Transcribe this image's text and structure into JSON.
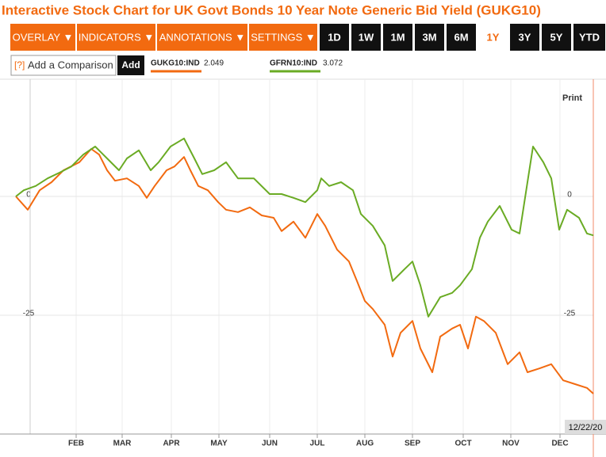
{
  "chart_data": {
    "type": "line",
    "title": "Interactive Stock Chart for UK Govt Bonds 10 Year Note Generic Bid Yield (GUKG10)",
    "xlim": [
      0,
      364
    ],
    "xticks": [
      {
        "value": 38,
        "label": "FEB"
      },
      {
        "value": 67,
        "label": "MAR"
      },
      {
        "value": 98,
        "label": "APR"
      },
      {
        "value": 128,
        "label": "MAY"
      },
      {
        "value": 160,
        "label": "JUN"
      },
      {
        "value": 190,
        "label": "JUL"
      },
      {
        "value": 220,
        "label": "AUG"
      },
      {
        "value": 250,
        "label": "SEP"
      },
      {
        "value": 282,
        "label": "OCT"
      },
      {
        "value": 312,
        "label": "NOV"
      },
      {
        "value": 343,
        "label": "DEC"
      }
    ],
    "ylim": [
      -50,
      24
    ],
    "yticks": [
      -25,
      0
    ],
    "grid": true,
    "end_label": "12/22/20",
    "series": [
      {
        "name": "GUKG10:IND",
        "last": 2.049,
        "color": "#f26a10",
        "x": [
          0,
          7.5,
          15,
          22.5,
          30,
          40,
          47.5,
          52.5,
          57.5,
          62.5,
          70,
          77.5,
          82.5,
          87.5,
          95,
          100,
          106,
          110,
          115,
          121,
          127.5,
          132.5,
          140,
          147.5,
          155,
          162.5,
          167.5,
          175,
          182.5,
          190,
          195,
          202.5,
          210,
          215,
          220,
          225,
          232.5,
          237.5,
          242.5,
          250,
          255,
          262.5,
          267.5,
          275,
          280,
          285,
          290,
          295,
          302.5,
          310,
          317.5,
          322.5,
          330,
          337.5,
          345,
          352.5,
          360,
          364
        ],
        "values": [
          0,
          -2.8,
          1.3,
          3,
          5.5,
          7.2,
          10,
          8.8,
          5.5,
          3.3,
          3.8,
          2.2,
          -0.3,
          2.2,
          5.5,
          6.3,
          8.3,
          5.5,
          2.2,
          1.3,
          -1.2,
          -2.8,
          -3.3,
          -2.3,
          -4,
          -4.5,
          -7.3,
          -5.3,
          -8.7,
          -3.7,
          -6.2,
          -11.2,
          -13.7,
          -17.8,
          -22,
          -23.7,
          -27,
          -33.7,
          -28.7,
          -26.2,
          -32,
          -37,
          -29.5,
          -27.8,
          -27,
          -32,
          -25.3,
          -26.2,
          -28.7,
          -35.3,
          -32.8,
          -37,
          -36.2,
          -35.3,
          -38.7,
          -39.5,
          -40.3,
          -41.5
        ]
      },
      {
        "name": "GFRN10:IND",
        "last": 3.072,
        "color": "#6aab24",
        "x": [
          0,
          5,
          12.5,
          20,
          27.5,
          35,
          42.5,
          50,
          57.5,
          65,
          70,
          77.5,
          85,
          90,
          97.5,
          106,
          112.5,
          117.5,
          125,
          132.5,
          140,
          150,
          160,
          167.5,
          175,
          182.5,
          190,
          192.5,
          197.5,
          205,
          212.5,
          217.5,
          225,
          232.5,
          237.5,
          245,
          250,
          255,
          260,
          267.5,
          275,
          280,
          287.5,
          292.5,
          297.5,
          305,
          312.5,
          317.5,
          322.5,
          326,
          332.5,
          337.5,
          342.5,
          347.5,
          355,
          360,
          364
        ],
        "values": [
          0,
          1.3,
          2.2,
          3.8,
          5,
          6.3,
          8.8,
          10.5,
          8,
          5.5,
          8,
          9.7,
          5.5,
          7.2,
          10.5,
          12.2,
          8,
          4.7,
          5.5,
          7.2,
          3.8,
          3.8,
          0.5,
          0.5,
          -0.3,
          -1.2,
          1.3,
          3.8,
          2.2,
          3,
          1.3,
          -3.7,
          -6.2,
          -10.3,
          -17.8,
          -15.3,
          -13.7,
          -18.7,
          -25.3,
          -21.2,
          -20.3,
          -18.7,
          -15.3,
          -8.7,
          -5.3,
          -2,
          -7,
          -7.8,
          3,
          10.5,
          7.2,
          3.8,
          -7,
          -2.8,
          -4.5,
          -7.8,
          -8.2
        ]
      }
    ]
  },
  "toolbar": {
    "menus": [
      "OVERLAY ▼",
      "INDICATORS ▼",
      "ANNOTATIONS ▼",
      "SETTINGS ▼"
    ],
    "ranges": [
      "1D",
      "1W",
      "1M",
      "3M",
      "6M",
      "1Y",
      "3Y",
      "5Y",
      "YTD"
    ],
    "active_range": 5
  },
  "comparison": {
    "icon": "[?]",
    "placeholder": "Add a Comparison",
    "button": "Add"
  },
  "print": "Print"
}
